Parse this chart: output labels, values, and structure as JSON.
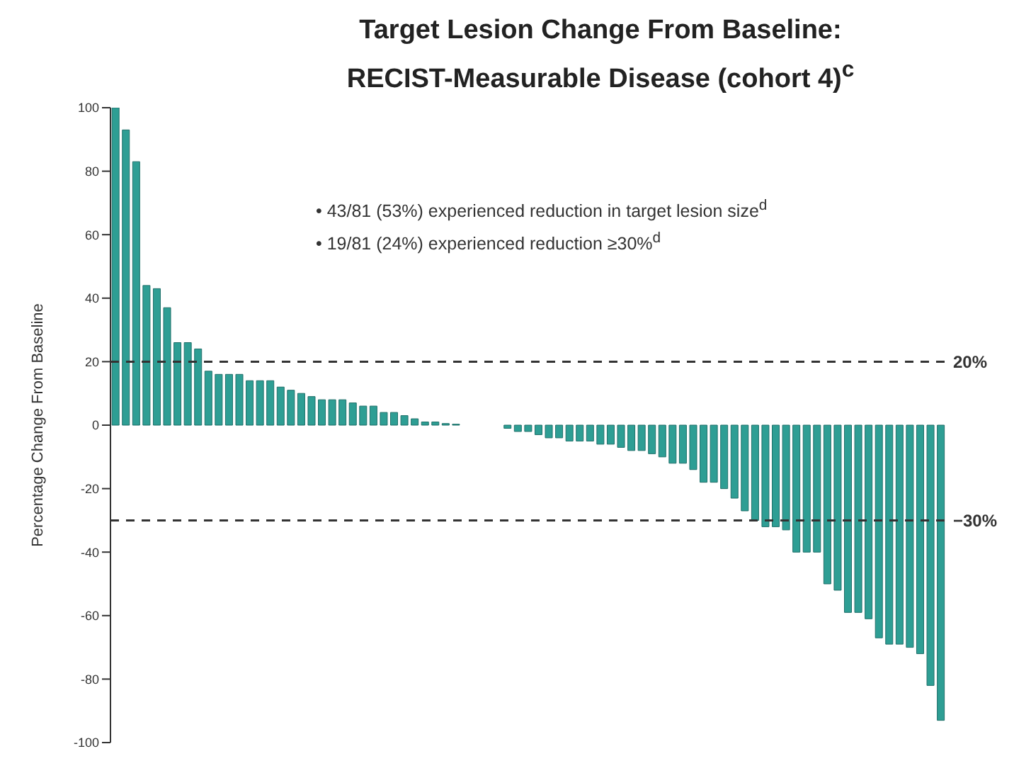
{
  "chart_data": {
    "type": "bar",
    "title": "Target Lesion Change From Baseline:\nRECIST-Measurable Disease (cohort 4)$^{c}$",
    "ylabel": "Percentage Change From Baseline",
    "annotations": [
      "•   43/81 (53%) experienced reduction in target lesion size$^{d}$",
      "•   19/81 (24%) experienced reduction ≥30%$^{d}$"
    ],
    "categories": [
      null,
      null,
      null,
      null,
      null,
      null,
      null,
      null,
      null,
      null,
      null,
      null,
      null,
      null,
      null,
      null,
      null,
      null,
      null,
      null,
      null,
      null,
      null,
      null,
      null,
      null,
      null,
      null,
      null,
      null,
      null,
      null,
      null,
      null,
      null,
      null,
      null,
      null,
      null,
      null,
      null,
      null,
      null,
      null,
      null,
      null,
      null,
      null,
      null,
      null,
      null,
      null,
      null,
      null,
      null,
      null,
      null,
      null,
      null,
      null,
      null,
      null,
      null,
      null,
      null,
      null,
      null,
      null,
      null,
      null,
      null,
      null,
      null,
      null,
      null,
      null,
      null,
      null,
      null,
      null,
      null
    ],
    "values": [
      100,
      93,
      83,
      44,
      43,
      37,
      26,
      26,
      24,
      17,
      16,
      16,
      16,
      14,
      14,
      14,
      12,
      11,
      10,
      9,
      8,
      8,
      8,
      7,
      6,
      6,
      4,
      4,
      3,
      2,
      1,
      1,
      0.5,
      0.3,
      0,
      0,
      0,
      0,
      -1,
      -2,
      -2,
      -3,
      -4,
      -4,
      -5,
      -5,
      -5,
      -6,
      -6,
      -7,
      -8,
      -8,
      -9,
      -10,
      -12,
      -12,
      -14,
      -18,
      -18,
      -20,
      -23,
      -27,
      -30,
      -32,
      -32,
      -33,
      -40,
      -40,
      -40,
      -50,
      -52,
      -59,
      -59,
      -61,
      -67,
      -69,
      -69,
      -70,
      -72,
      -82,
      -93
    ],
    "color": "#2e9e94",
    "ylim": [
      -100,
      100
    ],
    "yticks": [
      -100,
      -80,
      -60,
      -40,
      -20,
      0,
      20,
      40,
      60,
      80,
      100
    ],
    "tick_labels": "y",
    "grid": false,
    "legend": false,
    "ref_lines": [
      {
        "axis": "y",
        "value": 20,
        "label": "20%",
        "line_style": "dashed",
        "color": "#333333"
      },
      {
        "axis": "y",
        "value": -30,
        "label": "−30%",
        "line_style": "dashed",
        "color": "#333333"
      }
    ]
  }
}
